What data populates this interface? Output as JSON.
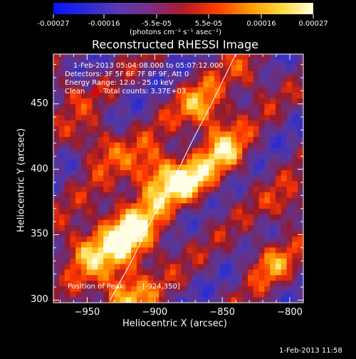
{
  "colorbar": {
    "tick_labels": [
      "-0.00027",
      "-0.00016",
      "-5.5e-05",
      "5.5e-05",
      "0.00016",
      "0.00027"
    ],
    "unit": "(photons cm⁻² s⁻¹ asec⁻²)",
    "colors": [
      "#0a12ff",
      "#2a2ad8",
      "#5b3ab0",
      "#7a2e86",
      "#b01a2a",
      "#ff3a00",
      "#ff9500",
      "#ffd83a",
      "#ffffe0"
    ],
    "range": [
      -0.00027,
      0.00027
    ]
  },
  "info": {
    "time_range": "1-Feb-2013 05:04:08.000 to 05:07:12.000",
    "detectors": "Detectors: 3F 5F 6F 7F 8F 9F, Att 0",
    "energy": "Energy Range: 12.0 - 25.0 keV",
    "clean": "Clean",
    "total_counts": "Total counts: 3.37E+03",
    "position_label": "Position of Peak:",
    "position_value": "[-924,350]"
  },
  "footer": {
    "timestamp": "1-Feb-2013 11:58"
  },
  "chart_data": {
    "type": "heatmap",
    "title": "Reconstructed RHESSI Image",
    "xlabel": "Heliocentric X (arcsec)",
    "ylabel": "Heliocentric Y (arcsec)",
    "xlim": [
      -975,
      -790
    ],
    "ylim": [
      298,
      488
    ],
    "x_ticks": [
      -950,
      -900,
      -850,
      -800
    ],
    "y_ticks": [
      300,
      350,
      400,
      450
    ],
    "x_tick_labels": [
      "−950",
      "−900",
      "−850",
      "−800"
    ],
    "y_tick_labels": [
      "300",
      "350",
      "400",
      "450"
    ],
    "limb_curve": [
      [
        -933,
        300
      ],
      [
        -917,
        330
      ],
      [
        -903,
        360
      ],
      [
        -887,
        390
      ],
      [
        -873,
        420
      ],
      [
        -858,
        450
      ],
      [
        -840,
        488
      ]
    ],
    "peak": [
      -924,
      350
    ],
    "blobs": [
      {
        "x": -920,
        "y": 350,
        "s": 26,
        "a": 1.0
      },
      {
        "x": -924,
        "y": 305,
        "s": 20,
        "a": 0.8
      },
      {
        "x": -896,
        "y": 395,
        "s": 22,
        "a": 0.95
      },
      {
        "x": -862,
        "y": 445,
        "s": 20,
        "a": 0.75
      },
      {
        "x": -848,
        "y": 412,
        "s": 18,
        "a": 0.7
      },
      {
        "x": -942,
        "y": 420,
        "s": 18,
        "a": 0.55
      },
      {
        "x": -955,
        "y": 338,
        "s": 18,
        "a": 0.6
      },
      {
        "x": -870,
        "y": 390,
        "s": 16,
        "a": 0.6
      },
      {
        "x": -815,
        "y": 330,
        "s": 18,
        "a": 0.55
      },
      {
        "x": -800,
        "y": 370,
        "s": 16,
        "a": 0.45
      },
      {
        "x": -830,
        "y": 470,
        "s": 16,
        "a": 0.45
      },
      {
        "x": -965,
        "y": 460,
        "s": 14,
        "a": 0.4
      }
    ]
  }
}
